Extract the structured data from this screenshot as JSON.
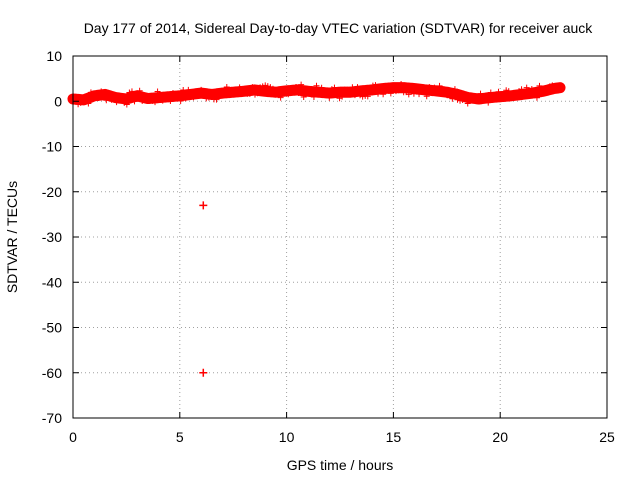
{
  "chart_data": {
    "type": "scatter",
    "title": "Day 177 of 2014, Sidereal Day-to-day VTEC variation (SDTVAR) for receiver auck",
    "xlabel": "GPS time / hours",
    "ylabel": "SDTVAR / TECUs",
    "xlim": [
      0,
      25
    ],
    "ylim": [
      -70,
      10
    ],
    "xticks": [
      0,
      5,
      10,
      15,
      20,
      25
    ],
    "yticks": [
      10,
      0,
      -10,
      -20,
      -30,
      -40,
      -50,
      -60,
      -70
    ],
    "grid": true,
    "marker": "+",
    "series_color": "#ff0000",
    "series": [
      {
        "name": "SDTVAR",
        "band": {
          "description": "dense cluster of + markers, center and half-width in TECU",
          "x": [
            0.0,
            0.5,
            1.0,
            1.5,
            2.0,
            2.5,
            3.0,
            3.5,
            4.0,
            4.5,
            5.0,
            5.5,
            6.0,
            6.5,
            7.0,
            7.5,
            8.0,
            8.5,
            9.0,
            9.5,
            10.0,
            10.5,
            11.0,
            11.5,
            12.0,
            12.5,
            13.0,
            13.5,
            14.0,
            14.5,
            15.0,
            15.5,
            16.0,
            16.5,
            17.0,
            17.5,
            18.0,
            18.5,
            19.0,
            19.5,
            20.0,
            20.5,
            21.0,
            21.5,
            22.0,
            22.5,
            22.8
          ],
          "center": [
            0.5,
            0.3,
            1.2,
            1.5,
            0.8,
            0.5,
            1.2,
            0.6,
            0.8,
            1.0,
            1.2,
            1.5,
            1.8,
            1.5,
            1.8,
            2.0,
            2.2,
            2.5,
            2.2,
            2.0,
            2.3,
            2.5,
            2.2,
            2.0,
            1.8,
            2.0,
            2.0,
            2.3,
            2.5,
            2.8,
            3.0,
            3.0,
            2.8,
            2.5,
            2.3,
            2.0,
            1.5,
            0.8,
            0.5,
            0.8,
            1.0,
            1.2,
            1.5,
            1.8,
            2.2,
            2.8,
            3.0
          ],
          "halfwidth": 1.0
        },
        "points": [
          {
            "x": 6.1,
            "y": -23
          },
          {
            "x": 6.1,
            "y": -60
          }
        ]
      }
    ]
  }
}
